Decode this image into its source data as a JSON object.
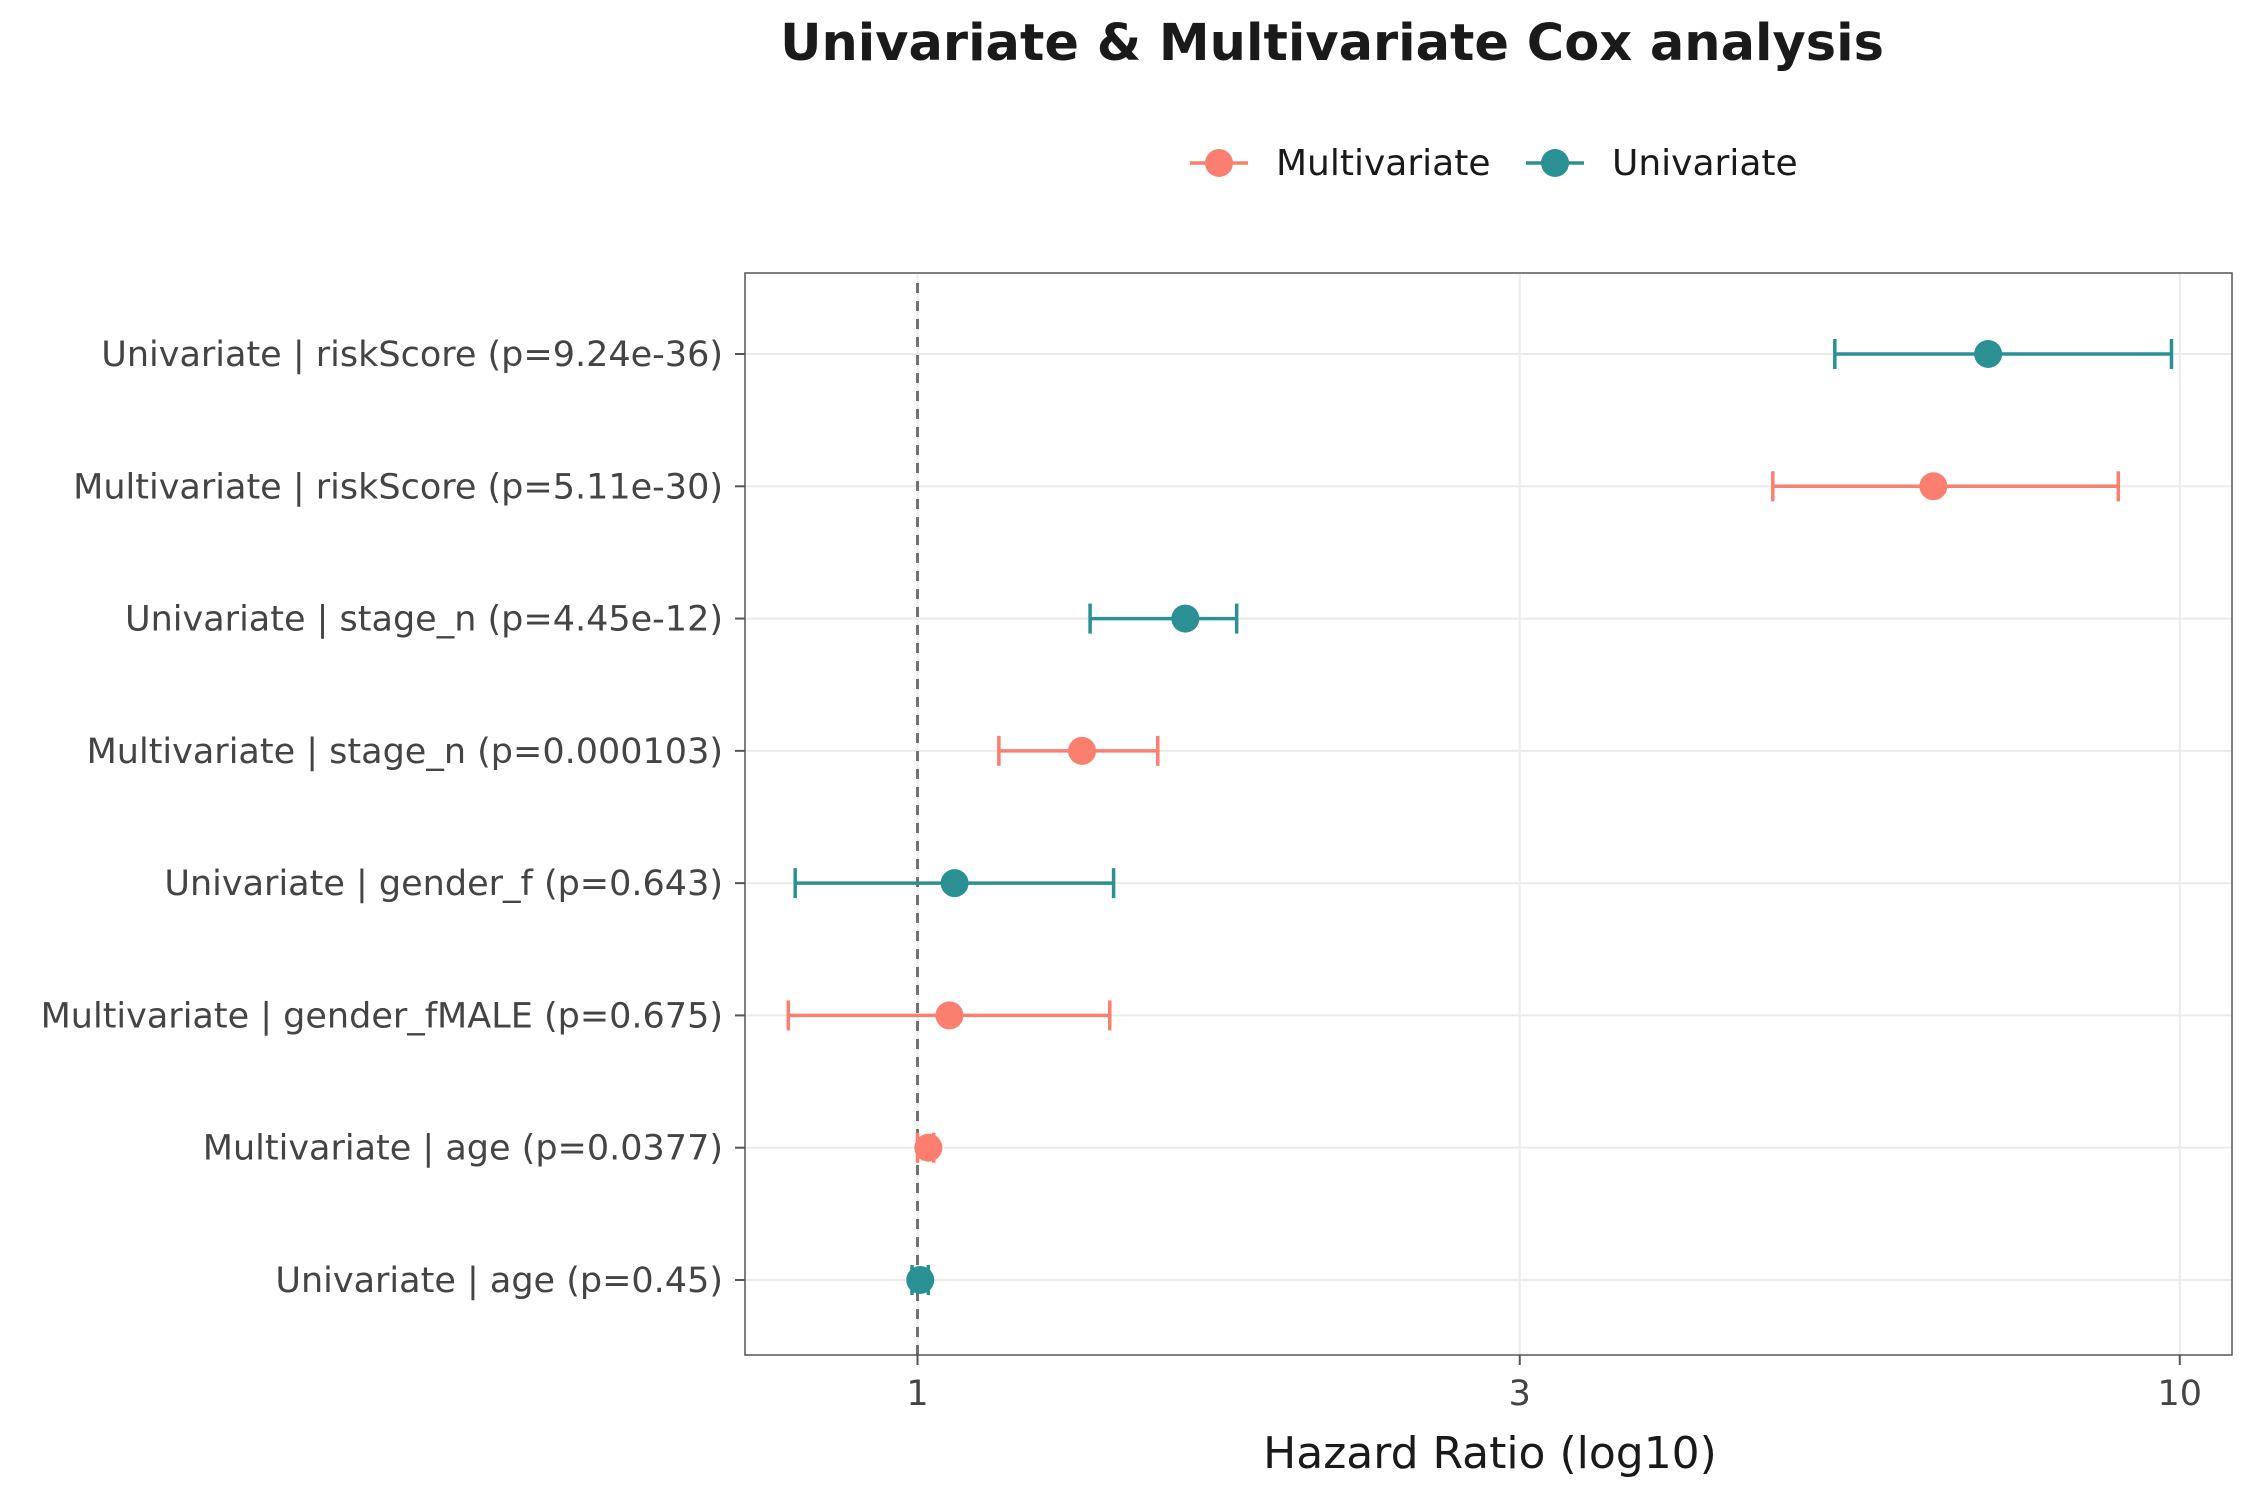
{
  "chart_data": {
    "type": "scatter",
    "subtype": "forest-plot-with-error-bars",
    "title": "Univariate & Multivariate Cox analysis",
    "xlabel": "Hazard Ratio (log10)",
    "ylabel": "",
    "x_scale": "log10",
    "xlim": [
      0.73,
      11.0
    ],
    "x_ticks": [
      1,
      3,
      10
    ],
    "x_tick_labels": [
      "1",
      "3",
      "10"
    ],
    "reference_line": 1,
    "grid": true,
    "legend": {
      "placement": "top-center",
      "entries": [
        {
          "name": "Multivariate",
          "color": "#FA7F6F"
        },
        {
          "name": "Univariate",
          "color": "#2A9094"
        }
      ]
    },
    "rows": [
      {
        "label": "Univariate | riskScore (p=9.24e-36)",
        "model": "Univariate",
        "hr": 7.05,
        "lower": 5.33,
        "upper": 9.85
      },
      {
        "label": "Multivariate | riskScore (p=5.11e-30)",
        "model": "Multivariate",
        "hr": 6.38,
        "lower": 4.76,
        "upper": 8.94
      },
      {
        "label": "Univariate | stage_n (p=4.45e-12)",
        "model": "Univariate",
        "hr": 1.63,
        "lower": 1.37,
        "upper": 1.79
      },
      {
        "label": "Multivariate | stage_n (p=0.000103)",
        "model": "Multivariate",
        "hr": 1.35,
        "lower": 1.16,
        "upper": 1.55
      },
      {
        "label": "Univariate | gender_f (p=0.643)",
        "model": "Univariate",
        "hr": 1.07,
        "lower": 0.8,
        "upper": 1.43
      },
      {
        "label": "Multivariate | gender_fMALE (p=0.675)",
        "model": "Multivariate",
        "hr": 1.06,
        "lower": 0.79,
        "upper": 1.42
      },
      {
        "label": "Multivariate | age (p=0.0377)",
        "model": "Multivariate",
        "hr": 1.02,
        "lower": 1.0,
        "upper": 1.03
      },
      {
        "label": "Univariate | age (p=0.45)",
        "model": "Univariate",
        "hr": 1.005,
        "lower": 0.99,
        "upper": 1.02
      }
    ]
  }
}
